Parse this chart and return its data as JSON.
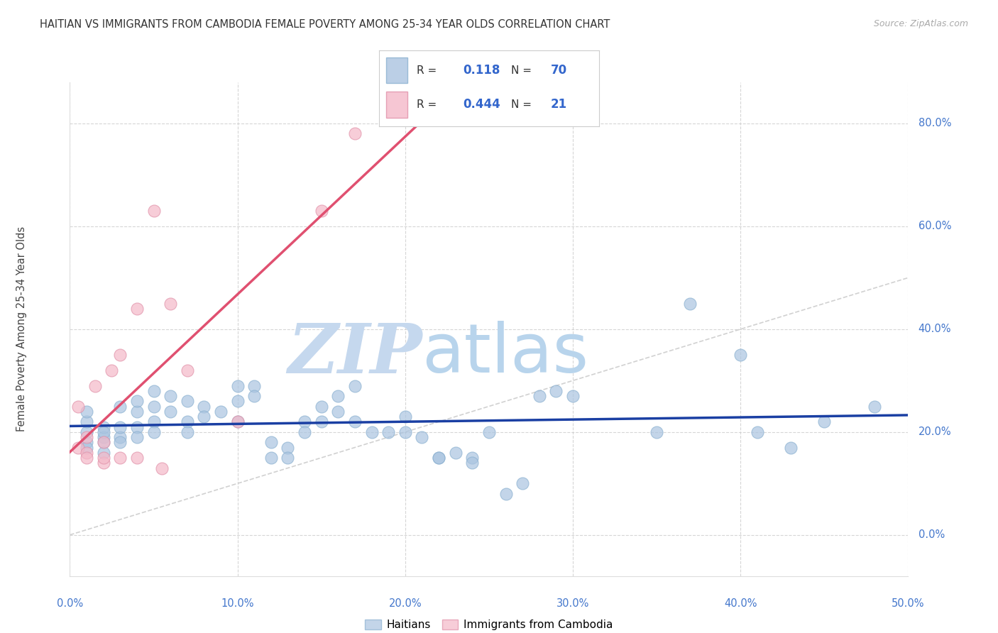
{
  "title": "HAITIAN VS IMMIGRANTS FROM CAMBODIA FEMALE POVERTY AMONG 25-34 YEAR OLDS CORRELATION CHART",
  "source": "Source: ZipAtlas.com",
  "ylabel": "Female Poverty Among 25-34 Year Olds",
  "xlim": [
    0.0,
    0.5
  ],
  "ylim": [
    -0.08,
    0.88
  ],
  "xticks": [
    0.0,
    0.1,
    0.2,
    0.3,
    0.4,
    0.5
  ],
  "yticks_right": [
    0.0,
    0.2,
    0.4,
    0.6,
    0.8
  ],
  "ytick_right_labels": [
    "0.0%",
    "20.0%",
    "40.0%",
    "60.0%",
    "80.0%"
  ],
  "xtick_labels": [
    "0.0%",
    "10.0%",
    "20.0%",
    "30.0%",
    "40.0%",
    "50.0%"
  ],
  "background_color": "#ffffff",
  "grid_color": "#cccccc",
  "watermark_zip": "ZIP",
  "watermark_atlas": "atlas",
  "watermark_color_zip": "#c5d8ee",
  "watermark_color_atlas": "#c5d8ee",
  "legend_R1": "0.118",
  "legend_N1": "70",
  "legend_R2": "0.444",
  "legend_N2": "21",
  "blue_color": "#aac4e0",
  "pink_color": "#f4b8c8",
  "blue_line_color": "#1a3fa3",
  "pink_line_color": "#e05070",
  "diag_line_color": "#cccccc",
  "series1_x": [
    0.01,
    0.01,
    0.01,
    0.01,
    0.01,
    0.02,
    0.02,
    0.02,
    0.02,
    0.02,
    0.03,
    0.03,
    0.03,
    0.03,
    0.04,
    0.04,
    0.04,
    0.04,
    0.05,
    0.05,
    0.05,
    0.05,
    0.06,
    0.06,
    0.07,
    0.07,
    0.07,
    0.08,
    0.08,
    0.09,
    0.1,
    0.1,
    0.1,
    0.11,
    0.11,
    0.12,
    0.12,
    0.13,
    0.13,
    0.14,
    0.14,
    0.15,
    0.15,
    0.16,
    0.16,
    0.17,
    0.17,
    0.18,
    0.19,
    0.2,
    0.2,
    0.21,
    0.22,
    0.22,
    0.23,
    0.24,
    0.24,
    0.25,
    0.26,
    0.27,
    0.28,
    0.29,
    0.3,
    0.35,
    0.37,
    0.4,
    0.41,
    0.43,
    0.45,
    0.48
  ],
  "series1_y": [
    0.2,
    0.22,
    0.18,
    0.24,
    0.17,
    0.19,
    0.21,
    0.18,
    0.2,
    0.16,
    0.25,
    0.19,
    0.21,
    0.18,
    0.24,
    0.21,
    0.26,
    0.19,
    0.28,
    0.25,
    0.22,
    0.2,
    0.27,
    0.24,
    0.26,
    0.22,
    0.2,
    0.25,
    0.23,
    0.24,
    0.26,
    0.29,
    0.22,
    0.29,
    0.27,
    0.18,
    0.15,
    0.17,
    0.15,
    0.22,
    0.2,
    0.25,
    0.22,
    0.27,
    0.24,
    0.22,
    0.29,
    0.2,
    0.2,
    0.23,
    0.2,
    0.19,
    0.15,
    0.15,
    0.16,
    0.15,
    0.14,
    0.2,
    0.08,
    0.1,
    0.27,
    0.28,
    0.27,
    0.2,
    0.45,
    0.35,
    0.2,
    0.17,
    0.22,
    0.25
  ],
  "series2_x": [
    0.005,
    0.005,
    0.01,
    0.01,
    0.01,
    0.015,
    0.02,
    0.02,
    0.02,
    0.025,
    0.03,
    0.03,
    0.04,
    0.04,
    0.05,
    0.055,
    0.06,
    0.07,
    0.1,
    0.15,
    0.17
  ],
  "series2_y": [
    0.25,
    0.17,
    0.19,
    0.16,
    0.15,
    0.29,
    0.18,
    0.14,
    0.15,
    0.32,
    0.35,
    0.15,
    0.44,
    0.15,
    0.63,
    0.13,
    0.45,
    0.32,
    0.22,
    0.63,
    0.78
  ]
}
